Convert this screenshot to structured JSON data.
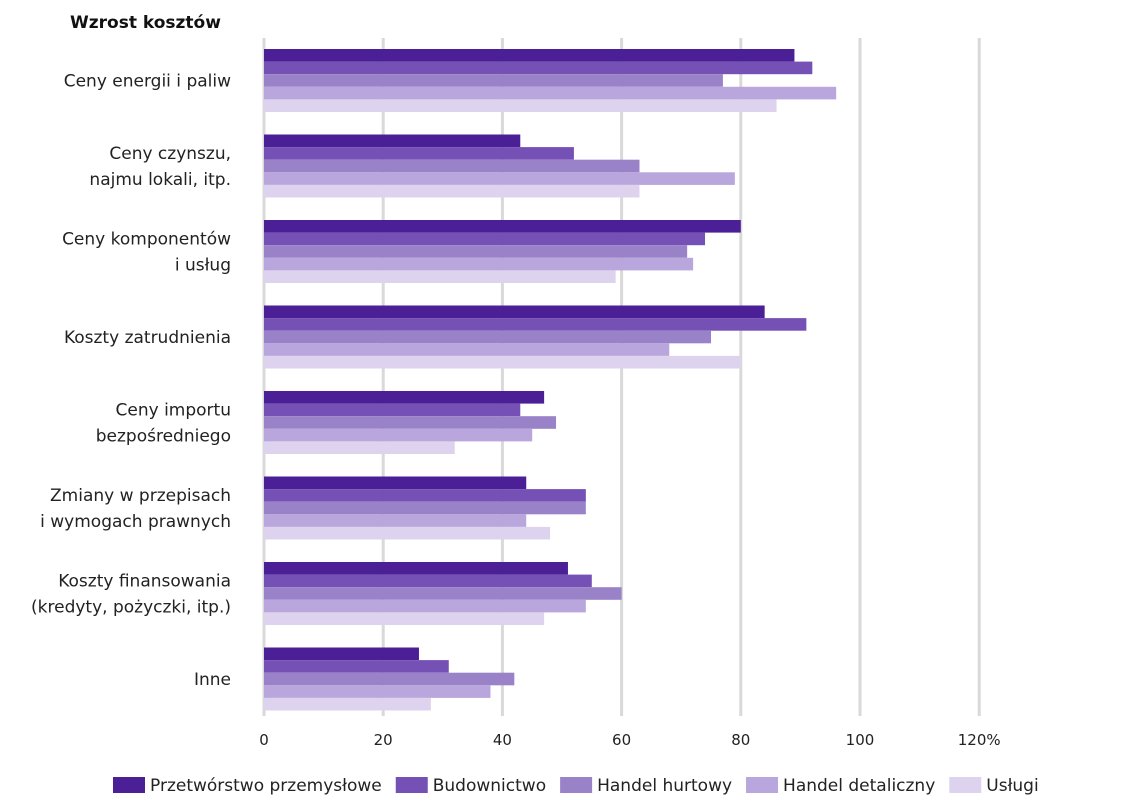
{
  "chart_data": {
    "type": "bar",
    "orientation": "horizontal",
    "title": "Wzrost kosztów",
    "xlim": [
      0,
      120
    ],
    "x_ticks": [
      "0",
      "20",
      "40",
      "60",
      "80",
      "100",
      "120%"
    ],
    "grid": true,
    "legend_position": "bottom",
    "categories": [
      [
        "Ceny energii i paliw"
      ],
      [
        "Ceny czynszu,",
        "najmu lokali, itp."
      ],
      [
        "Ceny komponentów",
        "i usług"
      ],
      [
        "Koszty zatrudnienia"
      ],
      [
        "Ceny importu",
        "bezpośredniego"
      ],
      [
        "Zmiany w przepisach",
        "i wymogach prawnych"
      ],
      [
        "Koszty finansowania",
        "(kredyty, pożyczki, itp.)"
      ],
      [
        "Inne"
      ]
    ],
    "series": [
      {
        "name": "Przetwórstwo przemysłowe",
        "color": "#4b1f96",
        "values": [
          89,
          43,
          80,
          84,
          47,
          44,
          51,
          26
        ]
      },
      {
        "name": "Budownictwo",
        "color": "#7651b5",
        "values": [
          92,
          52,
          74,
          91,
          43,
          54,
          55,
          31
        ]
      },
      {
        "name": "Handel hurtowy",
        "color": "#9a82c8",
        "values": [
          77,
          63,
          71,
          75,
          49,
          54,
          60,
          42
        ]
      },
      {
        "name": "Handel detaliczny",
        "color": "#b9a6dc",
        "values": [
          96,
          79,
          72,
          68,
          45,
          44,
          54,
          38
        ]
      },
      {
        "name": "Usługi",
        "color": "#ddd3ee",
        "values": [
          86,
          63,
          59,
          80,
          32,
          48,
          47,
          28
        ]
      }
    ]
  }
}
